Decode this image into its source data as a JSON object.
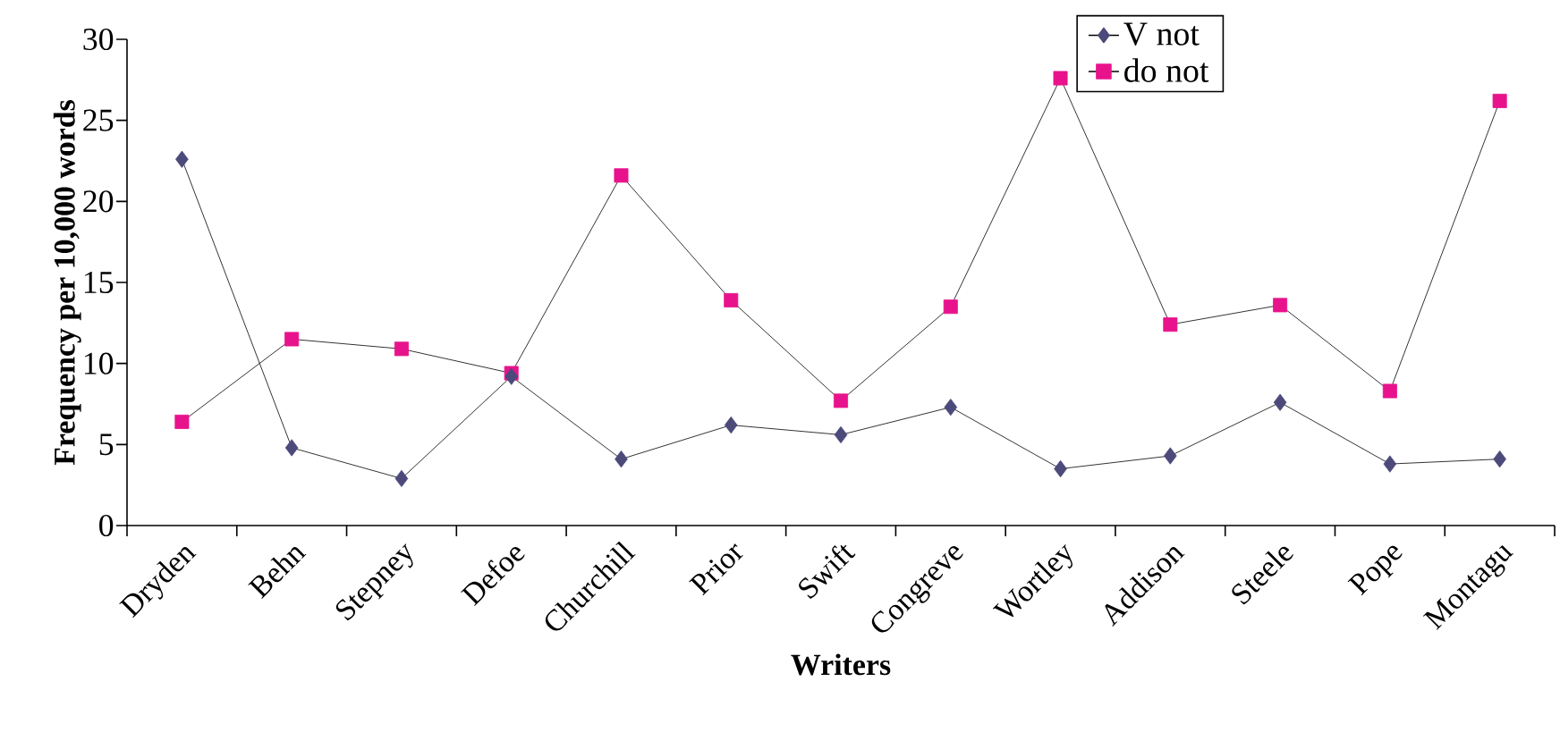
{
  "chart_data": {
    "type": "line",
    "xlabel": "Writers",
    "ylabel": "Frequency per 10,000 words",
    "categories": [
      "Dryden",
      "Behn",
      "Stepney",
      "Defoe",
      "Churchill",
      "Prior",
      "Swift",
      "Congreve",
      "Wortley",
      "Addison",
      "Steele",
      "Pope",
      "Montagu"
    ],
    "series": [
      {
        "name": "V not",
        "color": "#4b4a7a",
        "marker": "diamond",
        "values": [
          22.6,
          4.8,
          2.9,
          9.2,
          4.1,
          6.2,
          5.6,
          7.3,
          3.5,
          4.3,
          7.6,
          3.8,
          4.1
        ]
      },
      {
        "name": "do not",
        "color": "#e8138c",
        "marker": "square",
        "values": [
          6.4,
          11.5,
          10.9,
          9.4,
          21.6,
          13.9,
          7.7,
          13.5,
          27.6,
          12.4,
          13.6,
          8.3,
          26.2
        ]
      }
    ],
    "ylim": [
      0,
      30
    ],
    "yticks": [
      0,
      5,
      10,
      15,
      20,
      25,
      30
    ],
    "grid": false,
    "legend": "top right",
    "line_style": "solid"
  }
}
